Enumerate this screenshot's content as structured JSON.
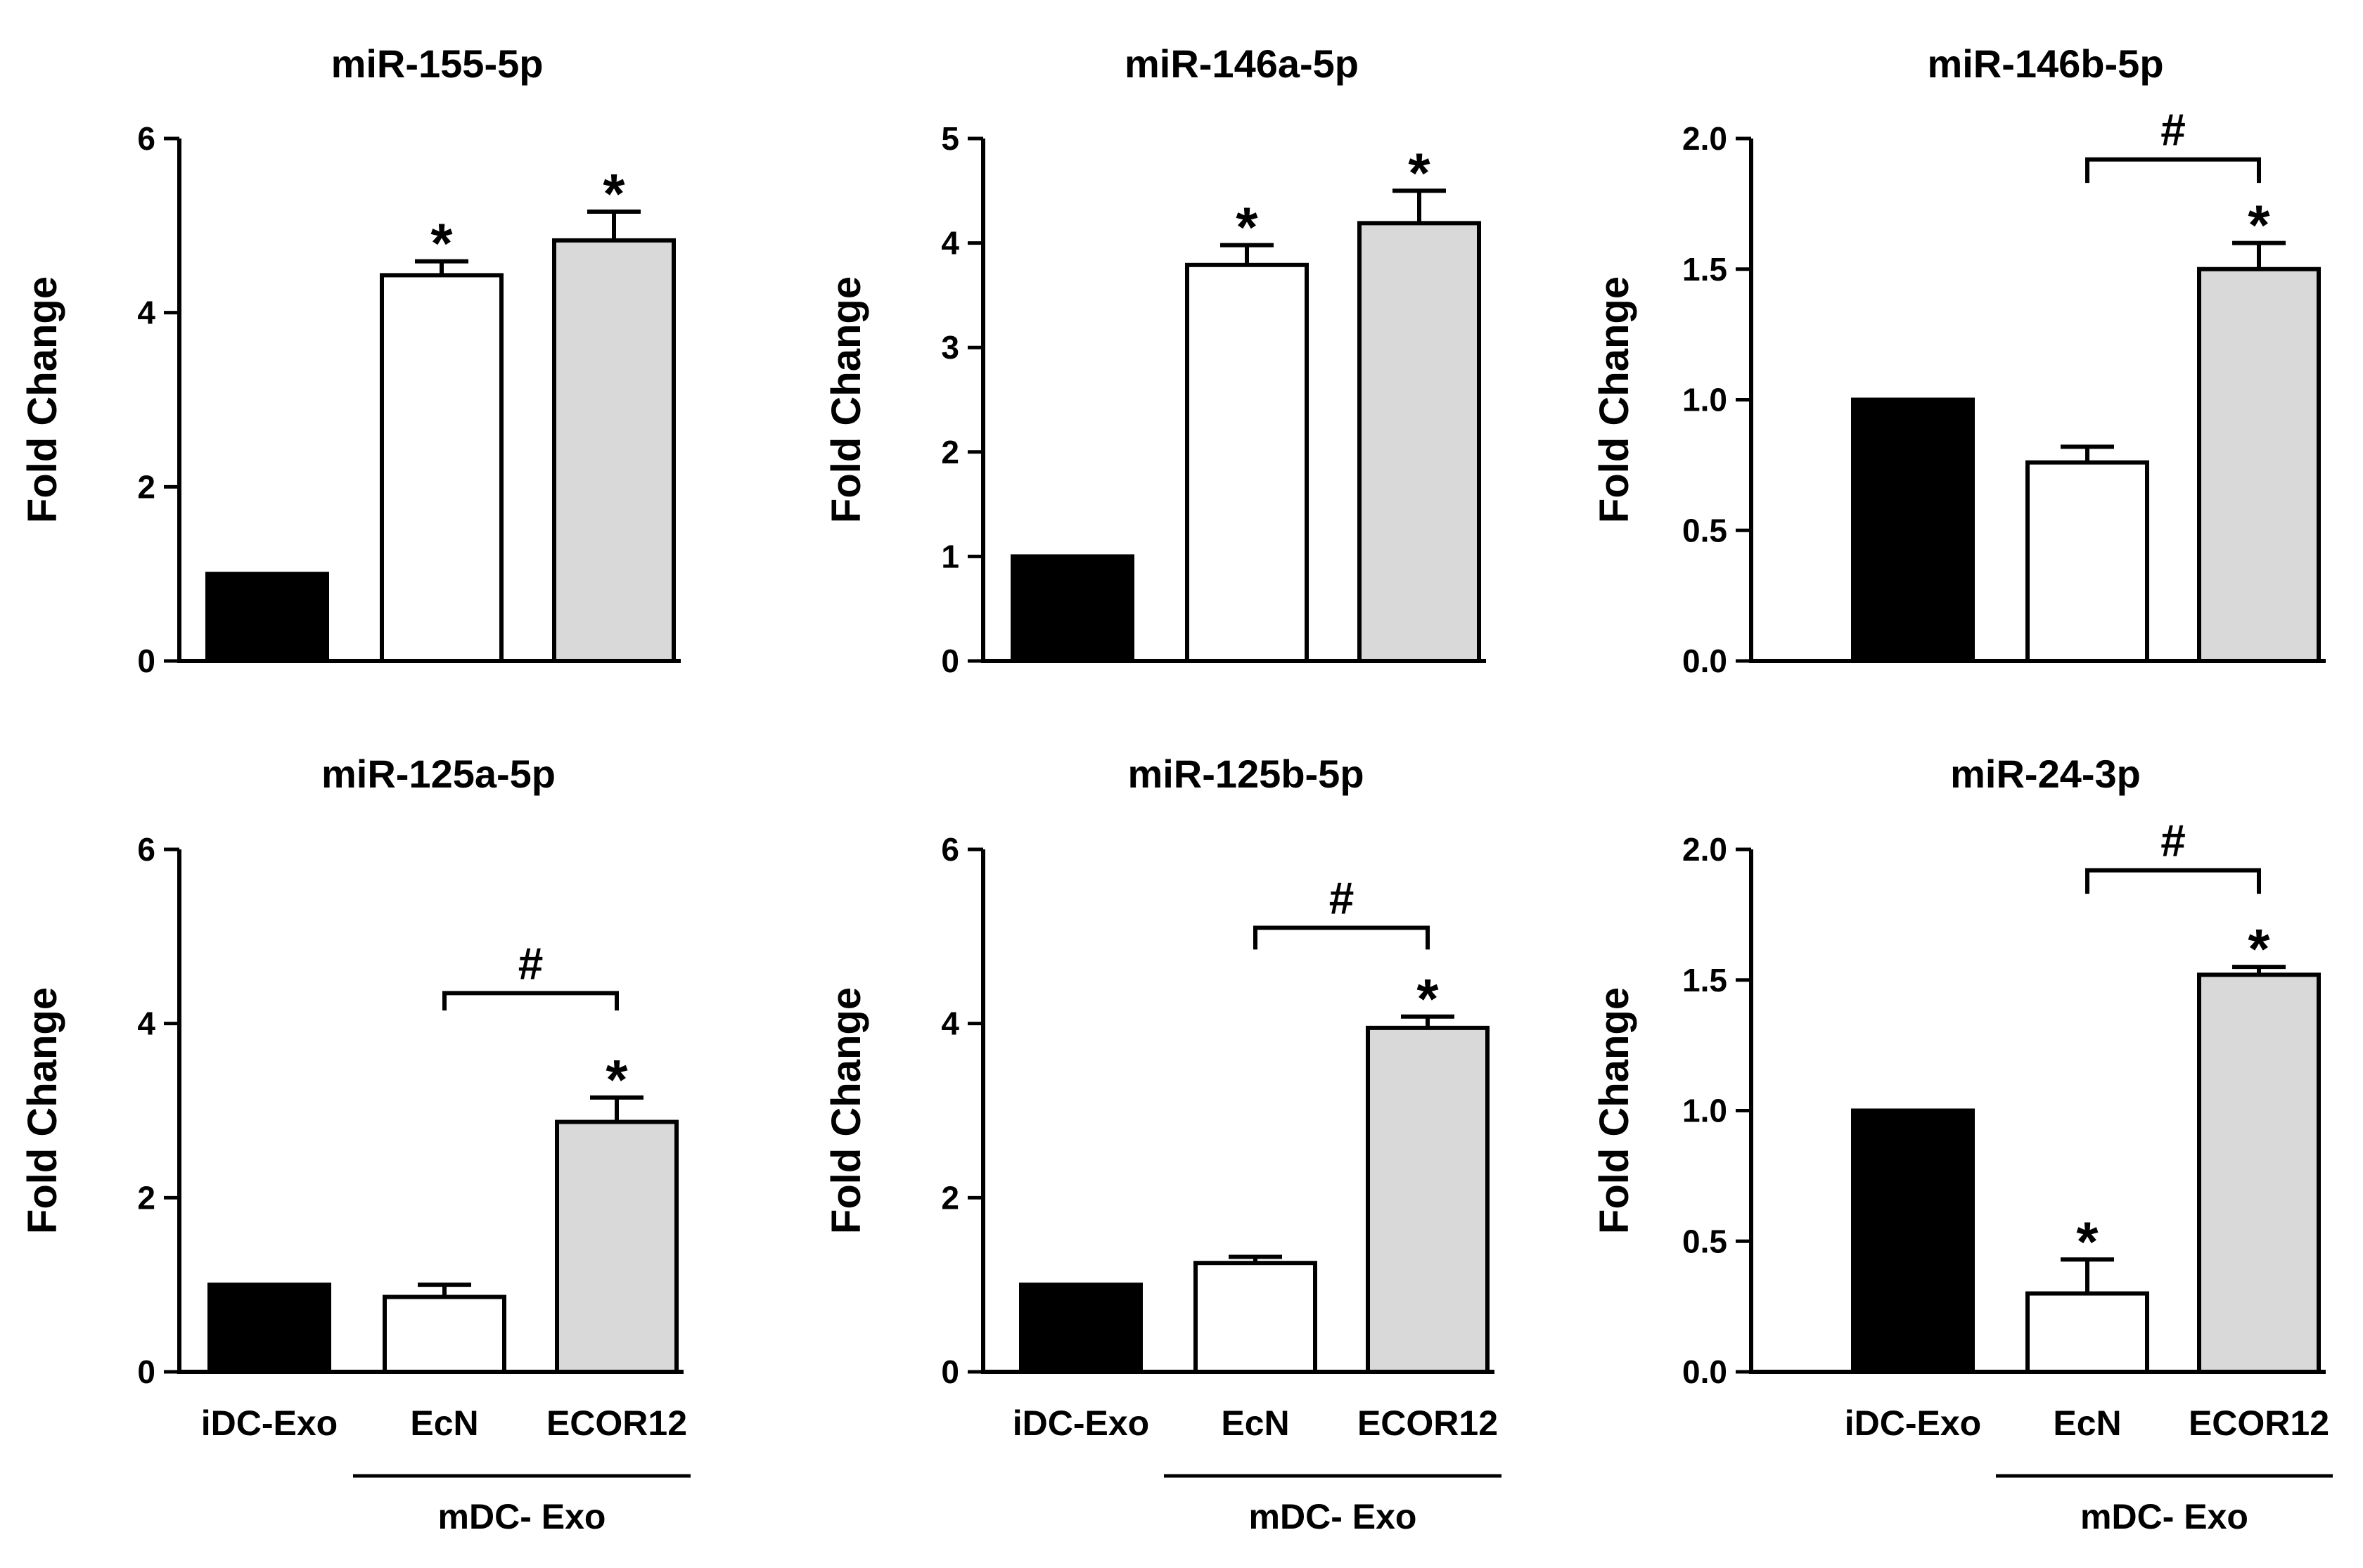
{
  "colors": {
    "ink": "#000000",
    "background": "#ffffff",
    "bar_idc": "#000000",
    "bar_ecn": "#ffffff",
    "bar_ecor12": "#d9d9d9"
  },
  "group_labels": [
    "iDC-Exo",
    "EcN",
    "ECOR12"
  ],
  "bracket_label": "mDC- Exo",
  "chart_data": [
    {
      "type": "bar",
      "title": "miR-155-5p",
      "ylabel": "Fold Change",
      "categories": [
        "iDC-Exo",
        "EcN",
        "ECOR12"
      ],
      "values": [
        1.0,
        4.43,
        4.83
      ],
      "errors": [
        0,
        0.16,
        0.33
      ],
      "ylim": [
        0,
        6
      ],
      "yticks": [
        "0",
        "2",
        "4",
        "6"
      ],
      "star_labels": [
        "",
        "*",
        "*"
      ],
      "hash": null,
      "show_xlabels": false
    },
    {
      "type": "bar",
      "title": "miR-146a-5p",
      "ylabel": "Fold Change",
      "categories": [
        "iDC-Exo",
        "EcN",
        "ECOR12"
      ],
      "values": [
        1.0,
        3.79,
        4.19
      ],
      "errors": [
        0,
        0.19,
        0.31
      ],
      "ylim": [
        0,
        5
      ],
      "yticks": [
        "0",
        "1",
        "2",
        "3",
        "4",
        "5"
      ],
      "star_labels": [
        "",
        "*",
        "*"
      ],
      "hash": null,
      "show_xlabels": false
    },
    {
      "type": "bar",
      "title": "miR-146b-5p",
      "ylabel": "Fold Change",
      "categories": [
        "iDC-Exo",
        "EcN",
        "ECOR12"
      ],
      "values": [
        1.0,
        0.76,
        1.5
      ],
      "errors": [
        0,
        0.06,
        0.1
      ],
      "ylim": [
        0,
        2.0
      ],
      "yticks": [
        "0.0",
        "0.5",
        "1.0",
        "1.5",
        "2.0"
      ],
      "star_labels": [
        "",
        "",
        "*"
      ],
      "hash": {
        "label": "#",
        "from": 1,
        "to": 2,
        "y": 1.92,
        "tick_low": 1.83
      },
      "show_xlabels": false
    },
    {
      "type": "bar",
      "title": "miR-125a-5p",
      "ylabel": "Fold Change",
      "categories": [
        "iDC-Exo",
        "EcN",
        "ECOR12"
      ],
      "values": [
        1.0,
        0.86,
        2.87
      ],
      "errors": [
        0,
        0.14,
        0.28
      ],
      "ylim": [
        0,
        6
      ],
      "yticks": [
        "0",
        "2",
        "4",
        "6"
      ],
      "star_labels": [
        "",
        "",
        "*"
      ],
      "hash": {
        "label": "#",
        "from": 1,
        "to": 2,
        "y": 4.35,
        "tick_low": 4.15
      },
      "show_xlabels": true
    },
    {
      "type": "bar",
      "title": "miR-125b-5p",
      "ylabel": "Fold Change",
      "categories": [
        "iDC-Exo",
        "EcN",
        "ECOR12"
      ],
      "values": [
        1.0,
        1.25,
        3.95
      ],
      "errors": [
        0,
        0.07,
        0.13
      ],
      "ylim": [
        0,
        6
      ],
      "yticks": [
        "0",
        "2",
        "4",
        "6"
      ],
      "star_labels": [
        "",
        "",
        "*"
      ],
      "hash": {
        "label": "#",
        "from": 1,
        "to": 2,
        "y": 5.1,
        "tick_low": 4.85
      },
      "show_xlabels": true
    },
    {
      "type": "bar",
      "title": "miR-24-3p",
      "ylabel": "Fold Change",
      "categories": [
        "iDC-Exo",
        "EcN",
        "ECOR12"
      ],
      "values": [
        1.0,
        0.3,
        1.52
      ],
      "errors": [
        0,
        0.13,
        0.03
      ],
      "ylim": [
        0,
        2.0
      ],
      "yticks": [
        "0.0",
        "0.5",
        "1.0",
        "1.5",
        "2.0"
      ],
      "star_labels": [
        "",
        "*",
        "*"
      ],
      "hash": {
        "label": "#",
        "from": 1,
        "to": 2,
        "y": 1.92,
        "tick_low": 1.83
      },
      "show_xlabels": true
    }
  ]
}
